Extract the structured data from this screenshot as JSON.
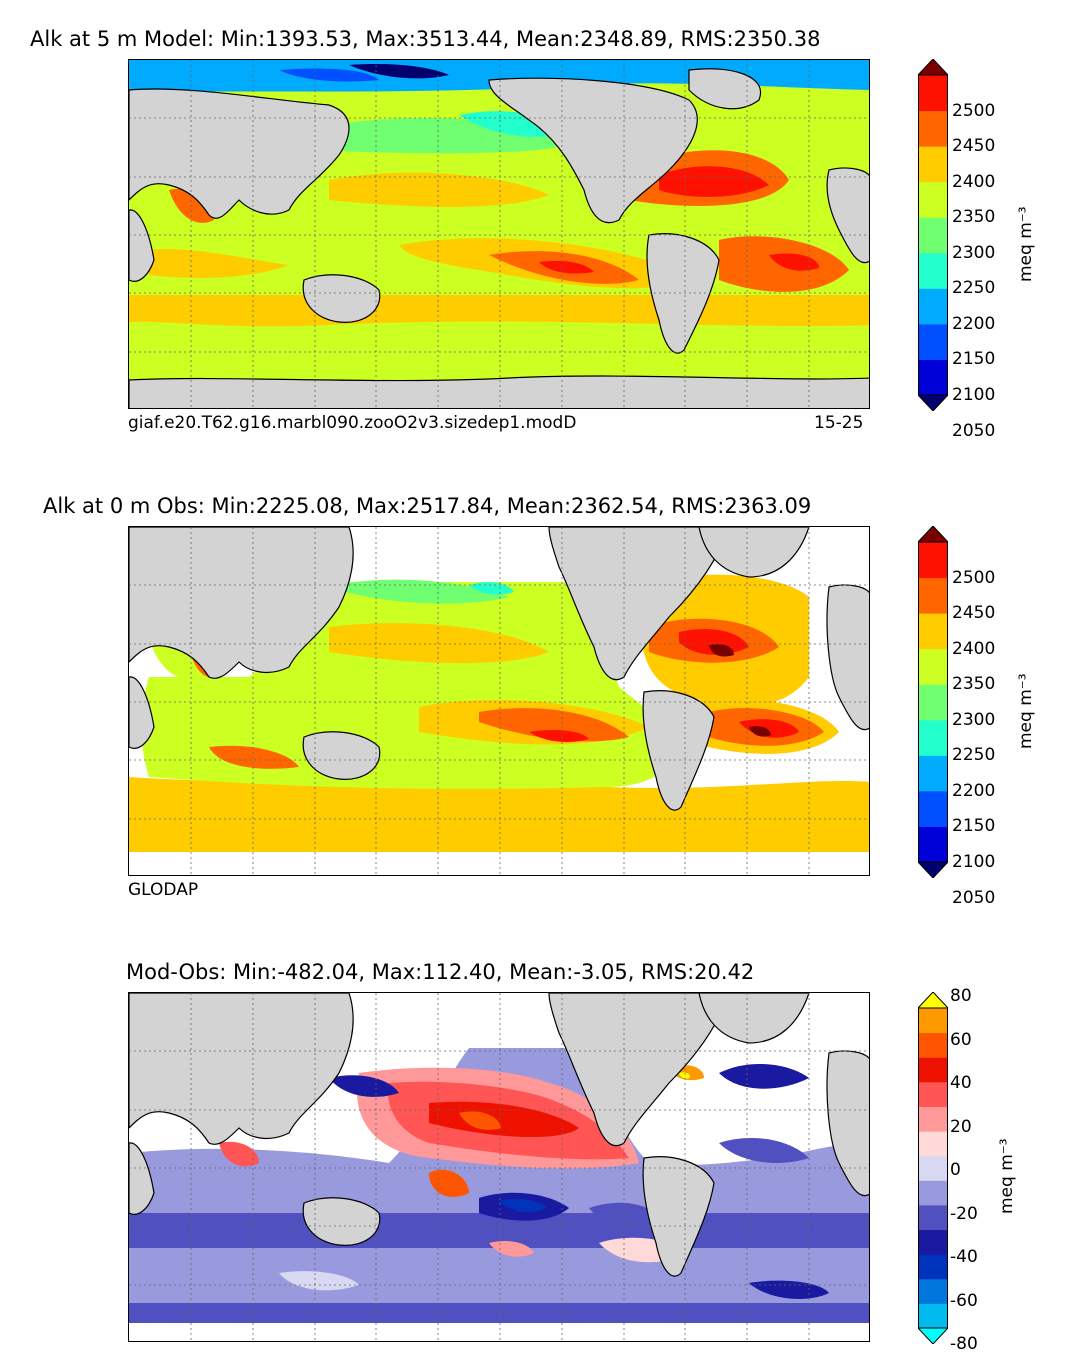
{
  "panels": [
    {
      "title": "Alk at 5 m Model: Min:1393.53, Max:3513.44, Mean:2348.89, RMS:2350.38",
      "caption_left": "giaf.e20.T62.g16.marbl090.zooO2v3.sizedep1.modD",
      "caption_right": "15-25",
      "colorbar": {
        "ticks": [
          "2500",
          "2450",
          "2400",
          "2350",
          "2300",
          "2250",
          "2200",
          "2150",
          "2100",
          "2050"
        ],
        "unit": "meq m⁻³",
        "colors": [
          "#00006e",
          "#0000d8",
          "#0050ff",
          "#00aaff",
          "#22ffcc",
          "#70ff70",
          "#ccff22",
          "#ffcc00",
          "#ff6600",
          "#ff1100",
          "#7a0000"
        ]
      }
    },
    {
      "title": "Alk at 0 m Obs: Min:2225.08, Max:2517.84, Mean:2362.54, RMS:2363.09",
      "caption_left": "GLODAP",
      "caption_right": "",
      "colorbar": {
        "ticks": [
          "2500",
          "2450",
          "2400",
          "2350",
          "2300",
          "2250",
          "2200",
          "2150",
          "2100",
          "2050"
        ],
        "unit": "meq m⁻³",
        "colors": [
          "#00006e",
          "#0000d8",
          "#0050ff",
          "#00aaff",
          "#22ffcc",
          "#70ff70",
          "#ccff22",
          "#ffcc00",
          "#ff6600",
          "#ff1100",
          "#7a0000"
        ]
      }
    },
    {
      "title": "Mod-Obs: Min:-482.04, Max:112.40, Mean:-3.05, RMS:20.42",
      "caption_left": "",
      "caption_right": "",
      "colorbar": {
        "ticks": [
          "80",
          "60",
          "40",
          "20",
          "0",
          "-20",
          "-40",
          "-60",
          "-80"
        ],
        "unit": "meq m⁻³",
        "colors": [
          "#00ffff",
          "#00bbee",
          "#0077dd",
          "#0033bb",
          "#1a1aa0",
          "#5050c0",
          "#9999dd",
          "#d8d8f2",
          "#ffd8d8",
          "#ff9999",
          "#ff5555",
          "#ee1100",
          "#ff5500",
          "#ff9900",
          "#ffff00"
        ]
      }
    }
  ]
}
